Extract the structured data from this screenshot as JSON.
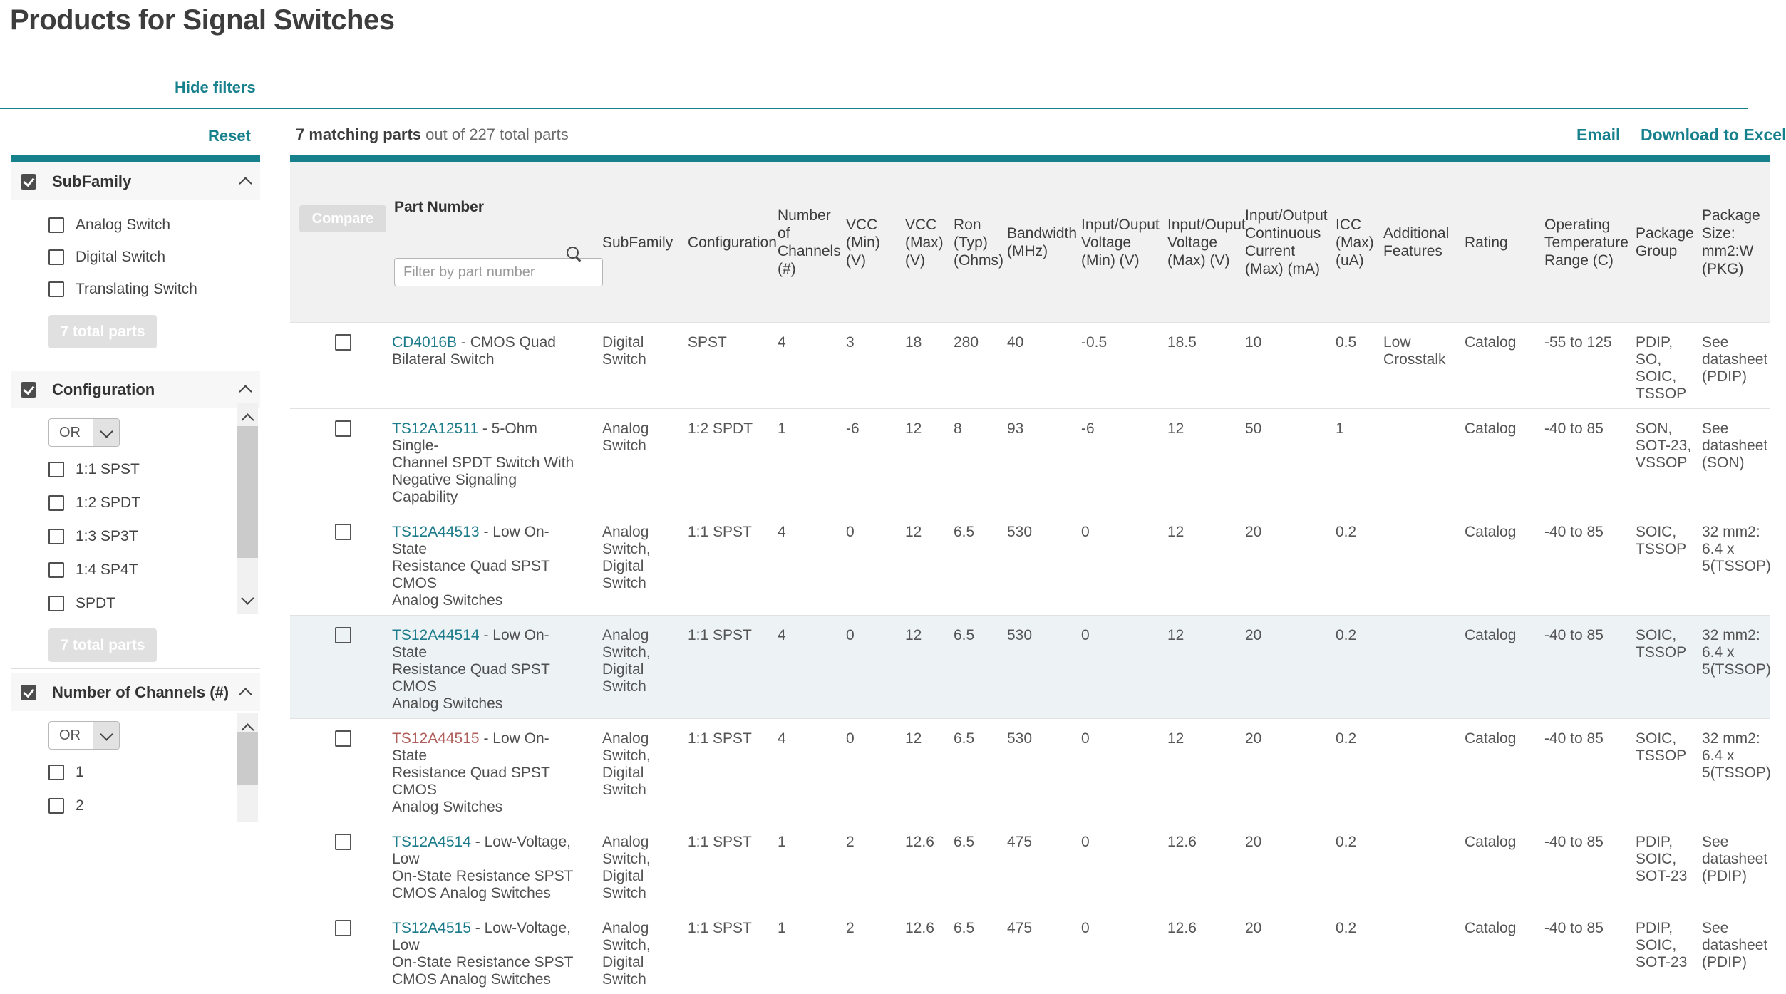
{
  "theme": {
    "accent": "#17808d",
    "link": "#1c7b8a",
    "visited_link": "#b05e59",
    "row_highlight": "#edf3f5"
  },
  "page": {
    "title": "Products for Signal Switches"
  },
  "controls": {
    "hide_filters": "Hide filters",
    "reset": "Reset",
    "email": "Email",
    "download": "Download to Excel"
  },
  "results_summary": {
    "bold": "7 matching parts",
    "rest": " out of 227 total parts"
  },
  "filters": {
    "sections": [
      {
        "title": "SubFamily",
        "checked": true,
        "options": [
          "Analog Switch",
          "Digital Switch",
          "Translating Switch"
        ],
        "footer": "7 total parts"
      },
      {
        "title": "Configuration",
        "checked": true,
        "operator": "OR",
        "options": [
          "1:1 SPST",
          "1:2 SPDT",
          "1:3 SP3T",
          "1:4 SP4T",
          "SPDT"
        ],
        "footer": "7 total parts"
      },
      {
        "title": "Number of Channels (#)",
        "checked": true,
        "operator": "OR",
        "options": [
          "1",
          "2"
        ]
      }
    ]
  },
  "table": {
    "compare_label": "Compare",
    "part_number_label": "Part Number",
    "filter_placeholder": "Filter by part number",
    "header_labels": {
      "subfamily": "SubFamily",
      "config": "Configuration",
      "channels": "Number\nof\nChannels\n(#)",
      "vcc_min": "VCC\n(Min)\n(V)",
      "vcc_max": "VCC\n(Max)\n(V)",
      "ron": "Ron\n(Typ)\n(Ohms)",
      "bandwidth": "Bandwidth\n(MHz)",
      "io_min": "Input/Ouput\nVoltage\n(Min) (V)",
      "io_max": "Input/Ouput\nVoltage\n(Max) (V)",
      "current": "Input/Output\nContinuous\nCurrent\n(Max) (mA)",
      "icc": "ICC\n(Max)\n(uA)",
      "features": "Additional\nFeatures",
      "rating": "Rating",
      "temp": "Operating\nTemperature\nRange (C)",
      "pkg_group": "Package\nGroup",
      "pkg_size": "Package\nSize:\nmm2:W\n(PKG)"
    },
    "rows": [
      {
        "part": "CD4016B",
        "desc": " - CMOS Quad\nBilateral Switch",
        "subfamily": "Digital\nSwitch",
        "config": "SPST",
        "channels": "4",
        "vcc_min": "3",
        "vcc_max": "18",
        "ron": "280",
        "bandwidth": "40",
        "io_min": "-0.5",
        "io_max": "18.5",
        "current": "10",
        "icc": "0.5",
        "features": "Low\nCrosstalk",
        "rating": "Catalog",
        "temp": "-55 to 125",
        "pkg_group": "PDIP,\nSO,\nSOIC,\nTSSOP",
        "pkg_size": "See\ndatasheet\n(PDIP)",
        "highlighted": false,
        "visited": false
      },
      {
        "part": "TS12A12511",
        "desc": " - 5-Ohm Single-\nChannel SPDT Switch With\nNegative Signaling Capability",
        "subfamily": "Analog\nSwitch",
        "config": "1:2 SPDT",
        "channels": "1",
        "vcc_min": "-6",
        "vcc_max": "12",
        "ron": "8",
        "bandwidth": "93",
        "io_min": "-6",
        "io_max": "12",
        "current": "50",
        "icc": "1",
        "features": "",
        "rating": "Catalog",
        "temp": "-40 to 85",
        "pkg_group": "SON,\nSOT-23,\nVSSOP",
        "pkg_size": "See\ndatasheet\n(SON)",
        "highlighted": false,
        "visited": false
      },
      {
        "part": "TS12A44513",
        "desc": " - Low On-State\nResistance Quad SPST CMOS\nAnalog Switches",
        "subfamily": "Analog\nSwitch,\nDigital\nSwitch",
        "config": "1:1 SPST",
        "channels": "4",
        "vcc_min": "0",
        "vcc_max": "12",
        "ron": "6.5",
        "bandwidth": "530",
        "io_min": "0",
        "io_max": "12",
        "current": "20",
        "icc": "0.2",
        "features": "",
        "rating": "Catalog",
        "temp": "-40 to 85",
        "pkg_group": "SOIC,\nTSSOP",
        "pkg_size": "32 mm2:\n6.4 x\n5(TSSOP)",
        "highlighted": false,
        "visited": false
      },
      {
        "part": "TS12A44514",
        "desc": " - Low On-State\nResistance Quad SPST CMOS\nAnalog Switches",
        "subfamily": "Analog\nSwitch,\nDigital\nSwitch",
        "config": "1:1 SPST",
        "channels": "4",
        "vcc_min": "0",
        "vcc_max": "12",
        "ron": "6.5",
        "bandwidth": "530",
        "io_min": "0",
        "io_max": "12",
        "current": "20",
        "icc": "0.2",
        "features": "",
        "rating": "Catalog",
        "temp": "-40 to 85",
        "pkg_group": "SOIC,\nTSSOP",
        "pkg_size": "32 mm2:\n6.4 x\n5(TSSOP)",
        "highlighted": true,
        "visited": false
      },
      {
        "part": "TS12A44515",
        "desc": " - Low On-State\nResistance Quad SPST CMOS\nAnalog Switches",
        "subfamily": "Analog\nSwitch,\nDigital\nSwitch",
        "config": "1:1 SPST",
        "channels": "4",
        "vcc_min": "0",
        "vcc_max": "12",
        "ron": "6.5",
        "bandwidth": "530",
        "io_min": "0",
        "io_max": "12",
        "current": "20",
        "icc": "0.2",
        "features": "",
        "rating": "Catalog",
        "temp": "-40 to 85",
        "pkg_group": "SOIC,\nTSSOP",
        "pkg_size": "32 mm2:\n6.4 x\n5(TSSOP)",
        "highlighted": false,
        "visited": true
      },
      {
        "part": "TS12A4514",
        "desc": " - Low-Voltage, Low\nOn-State Resistance SPST\nCMOS Analog Switches",
        "subfamily": "Analog\nSwitch,\nDigital\nSwitch",
        "config": "1:1 SPST",
        "channels": "1",
        "vcc_min": "2",
        "vcc_max": "12.6",
        "ron": "6.5",
        "bandwidth": "475",
        "io_min": "0",
        "io_max": "12.6",
        "current": "20",
        "icc": "0.2",
        "features": "",
        "rating": "Catalog",
        "temp": "-40 to 85",
        "pkg_group": "PDIP,\nSOIC,\nSOT-23",
        "pkg_size": "See\ndatasheet\n(PDIP)",
        "highlighted": false,
        "visited": false
      },
      {
        "part": "TS12A4515",
        "desc": " - Low-Voltage, Low\nOn-State Resistance SPST\nCMOS Analog Switches",
        "subfamily": "Analog\nSwitch,\nDigital\nSwitch",
        "config": "1:1 SPST",
        "channels": "1",
        "vcc_min": "2",
        "vcc_max": "12.6",
        "ron": "6.5",
        "bandwidth": "475",
        "io_min": "0",
        "io_max": "12.6",
        "current": "20",
        "icc": "0.2",
        "features": "",
        "rating": "Catalog",
        "temp": "-40 to 85",
        "pkg_group": "PDIP,\nSOIC,\nSOT-23",
        "pkg_size": "See\ndatasheet\n(PDIP)",
        "highlighted": false,
        "visited": false
      }
    ]
  }
}
